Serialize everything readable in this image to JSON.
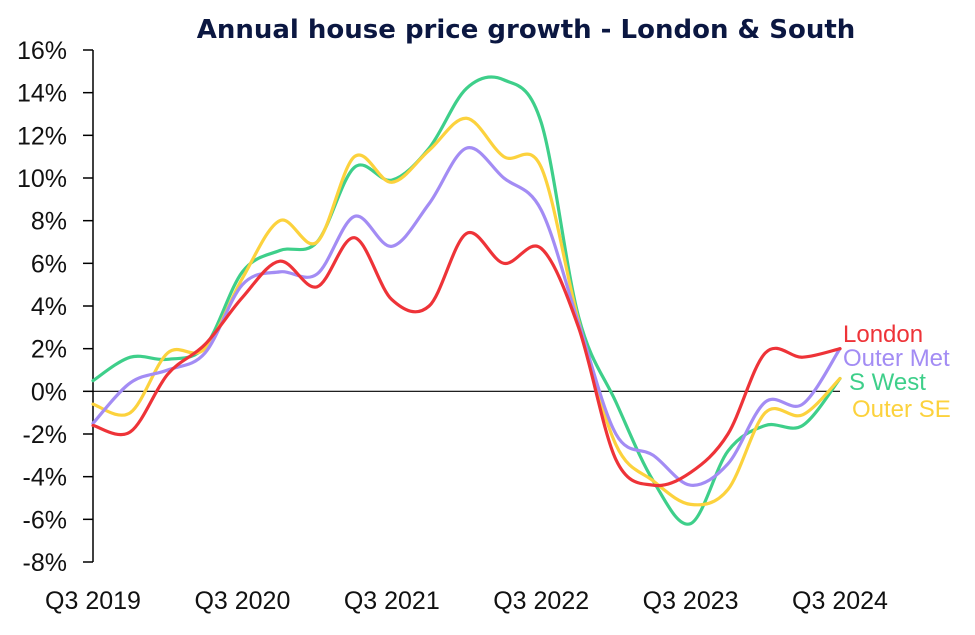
{
  "chart_data": {
    "type": "line",
    "title": "Annual house price growth - London & South",
    "xlabel": "",
    "ylabel": "",
    "ylim": [
      -8,
      16
    ],
    "ytick_step": 2,
    "y_format": "percent",
    "grid": false,
    "legend": "right (inline end-of-line labels)",
    "x_tick_labels": [
      "Q3 2019",
      "Q3 2020",
      "Q3 2021",
      "Q3 2022",
      "Q3 2023",
      "Q3 2024"
    ],
    "x": [
      "Q3 2019",
      "Q4 2019",
      "Q1 2020",
      "Q2 2020",
      "Q3 2020",
      "Q4 2020",
      "Q1 2021",
      "Q2 2021",
      "Q3 2021",
      "Q4 2021",
      "Q1 2022",
      "Q2 2022",
      "Q3 2022",
      "Q4 2022",
      "Q1 2023",
      "Q2 2023",
      "Q3 2023",
      "Q4 2023",
      "Q1 2024",
      "Q2 2024",
      "Q3 2024"
    ],
    "series": [
      {
        "name": "London",
        "color": "#ee3338",
        "values": [
          -1.6,
          -1.9,
          0.8,
          2.2,
          4.4,
          6.1,
          4.9,
          7.2,
          4.3,
          4.0,
          7.4,
          6.0,
          6.7,
          3.0,
          -3.2,
          -4.4,
          -3.8,
          -2.0,
          1.8,
          1.6,
          2.0
        ]
      },
      {
        "name": "Outer Met",
        "color": "#a38cf4",
        "values": [
          -1.5,
          0.4,
          1.0,
          1.8,
          5.0,
          5.6,
          5.5,
          8.2,
          6.8,
          8.8,
          11.4,
          10.0,
          8.5,
          3.2,
          -2.0,
          -3.0,
          -4.4,
          -3.4,
          -0.5,
          -0.6,
          2.0
        ]
      },
      {
        "name": "S West",
        "color": "#3ecf8a",
        "values": [
          0.5,
          1.6,
          1.5,
          2.1,
          5.6,
          6.6,
          7.0,
          10.5,
          9.9,
          11.4,
          14.2,
          14.6,
          12.6,
          3.5,
          -0.5,
          -4.2,
          -6.2,
          -2.8,
          -1.6,
          -1.6,
          0.6
        ]
      },
      {
        "name": "Outer SE",
        "color": "#fcd23d",
        "values": [
          -0.6,
          -1.0,
          1.8,
          2.0,
          5.3,
          8.0,
          7.0,
          11.0,
          9.8,
          11.3,
          12.8,
          11.0,
          10.5,
          3.3,
          -2.5,
          -4.2,
          -5.3,
          -4.6,
          -1.0,
          -1.1,
          0.6
        ]
      }
    ],
    "ytick_labels": [
      "16%",
      "14%",
      "12%",
      "10%",
      "8%",
      "6%",
      "4%",
      "2%",
      "0%",
      "-2%",
      "-4%",
      "-6%",
      "-8%"
    ]
  }
}
